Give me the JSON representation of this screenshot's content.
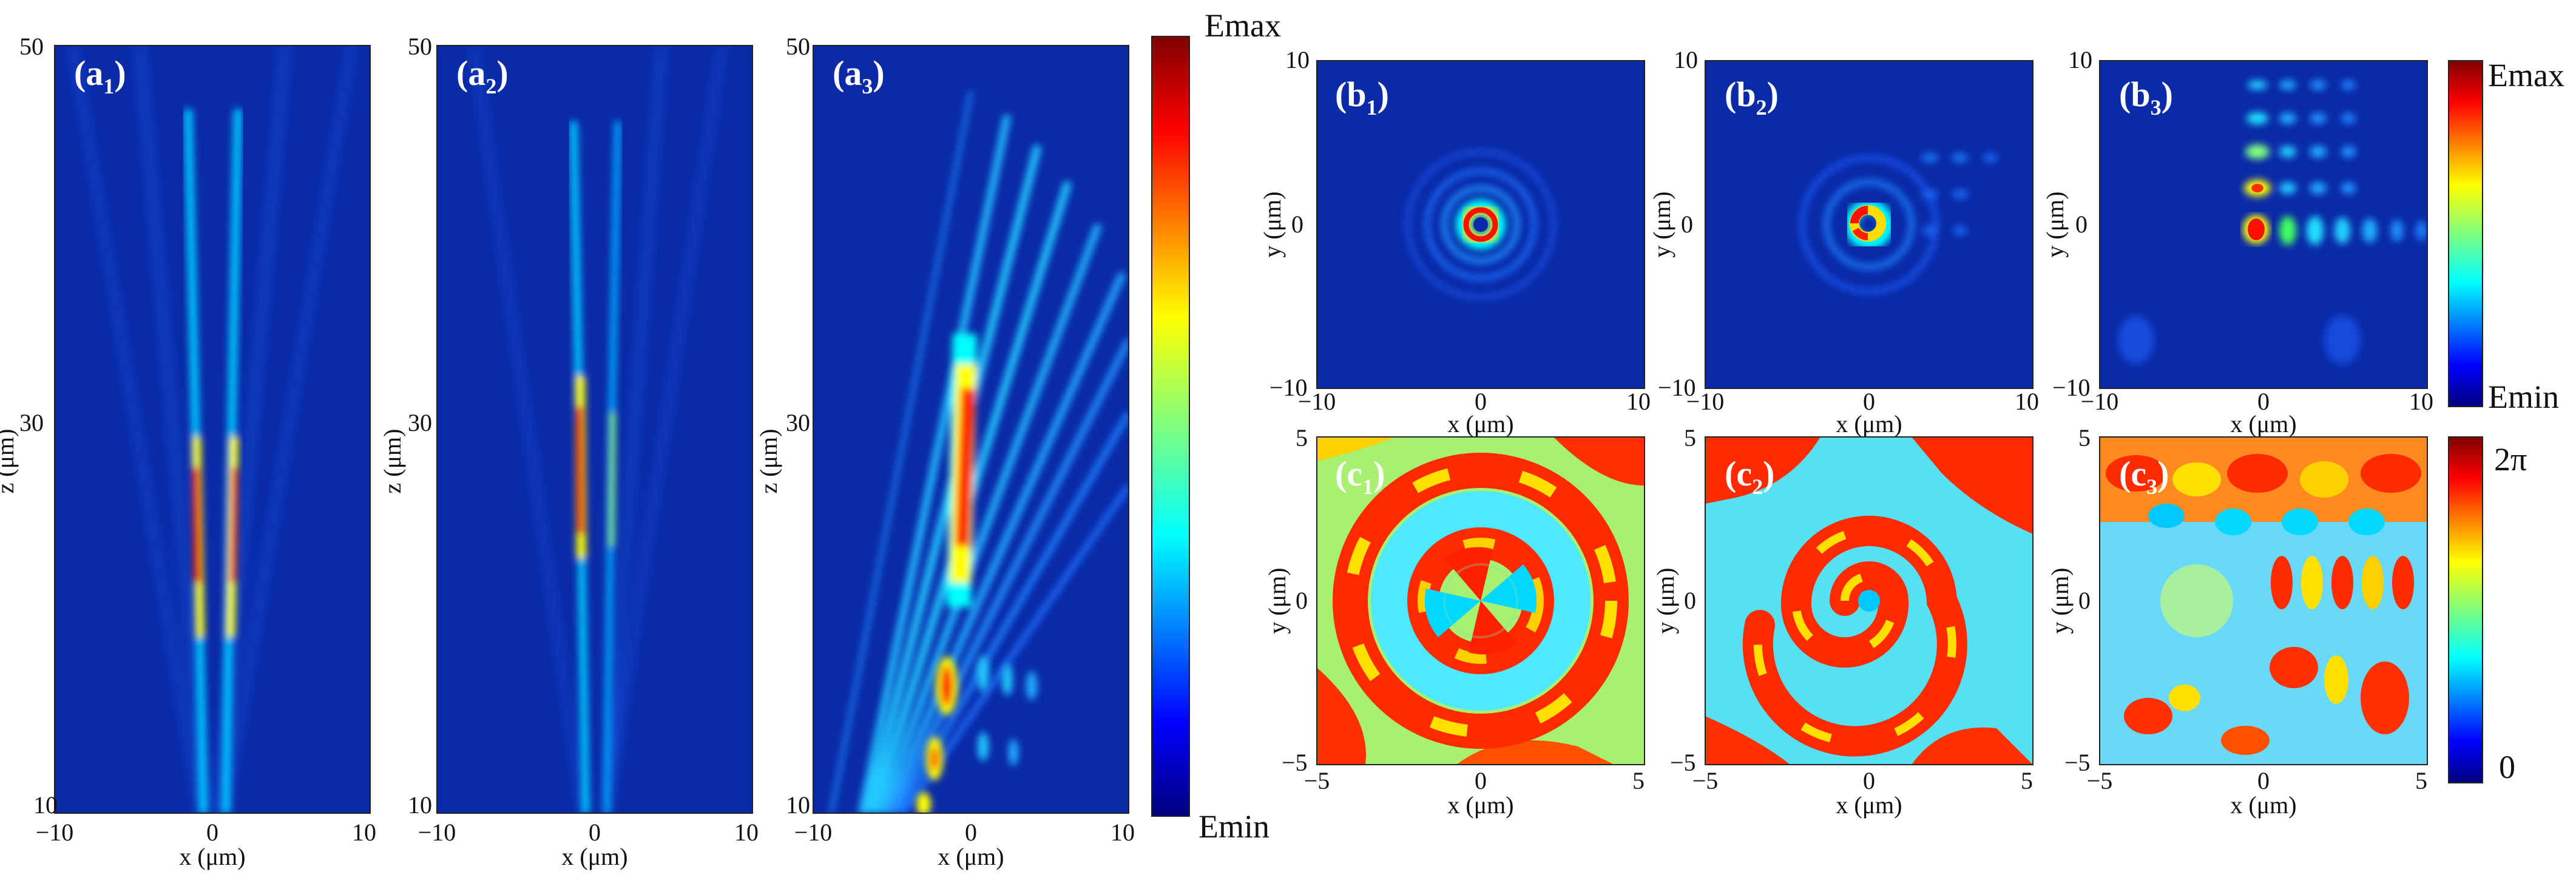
{
  "figure": {
    "panels_a": [
      {
        "id": "a1",
        "label": "(a",
        "sub": "1",
        "end": ")",
        "xlabel": "x (μm)",
        "ylabel": "z (μm)",
        "xticks": [
          "−10",
          "0",
          "10"
        ],
        "yticks": [
          "50",
          "30",
          "10"
        ]
      },
      {
        "id": "a2",
        "label": "(a",
        "sub": "2",
        "end": ")",
        "xlabel": "x (μm)",
        "ylabel": "z (μm)",
        "xticks": [
          "−10",
          "0",
          "10"
        ],
        "yticks": [
          "50",
          "30",
          "10"
        ]
      },
      {
        "id": "a3",
        "label": "(a",
        "sub": "3",
        "end": ")",
        "xlabel": "x (μm)",
        "ylabel": "z (μm)",
        "xticks": [
          "−10",
          "0",
          "10"
        ],
        "yticks": [
          "50",
          "30",
          "10"
        ]
      }
    ],
    "panels_b": [
      {
        "id": "b1",
        "label": "(b",
        "sub": "1",
        "end": ")",
        "xlabel": "x (μm)",
        "ylabel": "y (μm)",
        "xticks": [
          "−10",
          "0",
          "10"
        ],
        "yticks": [
          "10",
          "0",
          "−10"
        ]
      },
      {
        "id": "b2",
        "label": "(b",
        "sub": "2",
        "end": ")",
        "xlabel": "x (μm)",
        "ylabel": "y (μm)",
        "xticks": [
          "−10",
          "0",
          "10"
        ],
        "yticks": [
          "10",
          "0",
          "−10"
        ]
      },
      {
        "id": "b3",
        "label": "(b",
        "sub": "3",
        "end": ")",
        "xlabel": "x (μm)",
        "ylabel": "y (μm)",
        "xticks": [
          "−10",
          "0",
          "10"
        ],
        "yticks": [
          "10",
          "0",
          "−10"
        ]
      }
    ],
    "panels_c": [
      {
        "id": "c1",
        "label": "(c",
        "sub": "1",
        "end": ")",
        "xlabel": "x (μm)",
        "ylabel": "y (μm)",
        "xticks": [
          "−5",
          "0",
          "5"
        ],
        "yticks": [
          "5",
          "0",
          "−5"
        ]
      },
      {
        "id": "c2",
        "label": "(c",
        "sub": "2",
        "end": ")",
        "xlabel": "x (μm)",
        "ylabel": "y (μm)",
        "xticks": [
          "−5",
          "0",
          "5"
        ],
        "yticks": [
          "5",
          "0",
          "−5"
        ]
      },
      {
        "id": "c3",
        "label": "(c",
        "sub": "3",
        "end": ")",
        "xlabel": "x (μm)",
        "ylabel": "y (μm)",
        "xticks": [
          "−5",
          "0",
          "5"
        ],
        "yticks": [
          "5",
          "0",
          "−5"
        ]
      }
    ],
    "colorbar_intensity": {
      "max_label": "Emax",
      "min_label": "Emin"
    },
    "colorbar_intensity_b": {
      "max_label": "Emax",
      "min_label": "Emin"
    },
    "colorbar_phase": {
      "max_label": "2π",
      "min_label": "0"
    }
  },
  "colors": {
    "jet": [
      "#00007f",
      "#0000ff",
      "#007fff",
      "#00ffff",
      "#7fff7f",
      "#ffff00",
      "#ff7f00",
      "#ff0000",
      "#7f0000"
    ],
    "background": "#0a2aa8"
  }
}
